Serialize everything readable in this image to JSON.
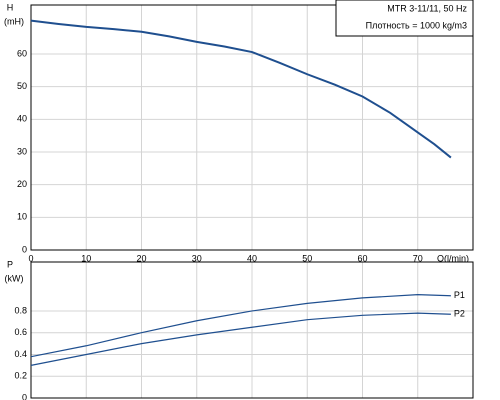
{
  "chart_data": [
    {
      "type": "line",
      "ylabel": "H",
      "yunit": "(mH)",
      "xlabel": "Q(l/min)",
      "annotations": [
        "MTR 3-11/11, 50 Hz",
        "Плотность = 1000 kg/m3"
      ],
      "x": [
        0,
        5,
        10,
        15,
        20,
        25,
        30,
        35,
        40,
        45,
        50,
        55,
        60,
        65,
        70,
        73,
        76
      ],
      "series": [
        {
          "name": "H",
          "color": "#1f4f8f",
          "values": [
            70.2,
            69.2,
            68.3,
            67.6,
            66.8,
            65.4,
            63.7,
            62.3,
            60.6,
            57.3,
            53.8,
            50.6,
            47,
            42,
            36,
            32.4,
            28.3
          ]
        }
      ],
      "xlim": [
        0,
        80
      ],
      "xticks": [
        0,
        10,
        20,
        30,
        40,
        50,
        60,
        70
      ],
      "show_xtick_labels": true,
      "ylim": [
        0,
        75
      ],
      "yticks": [
        0,
        10,
        20,
        30,
        40,
        50,
        60
      ],
      "grid": true
    },
    {
      "type": "line",
      "ylabel": "P",
      "yunit": "(kW)",
      "end_labels": true,
      "x": [
        0,
        10,
        20,
        30,
        40,
        50,
        60,
        70,
        76
      ],
      "series": [
        {
          "name": "P1",
          "color": "#1f4f8f",
          "values": [
            0.38,
            0.48,
            0.6,
            0.71,
            0.8,
            0.87,
            0.92,
            0.95,
            0.94
          ]
        },
        {
          "name": "P2",
          "color": "#1f4f8f",
          "values": [
            0.3,
            0.4,
            0.5,
            0.58,
            0.65,
            0.72,
            0.76,
            0.78,
            0.77
          ]
        }
      ],
      "xlim": [
        0,
        80
      ],
      "xticks": [
        0,
        10,
        20,
        30,
        40,
        50,
        60,
        70
      ],
      "show_xtick_labels": false,
      "ylim": [
        0,
        1.25
      ],
      "yticks": [
        0,
        0.2,
        0.4,
        0.6,
        0.8
      ],
      "grid": true
    }
  ]
}
